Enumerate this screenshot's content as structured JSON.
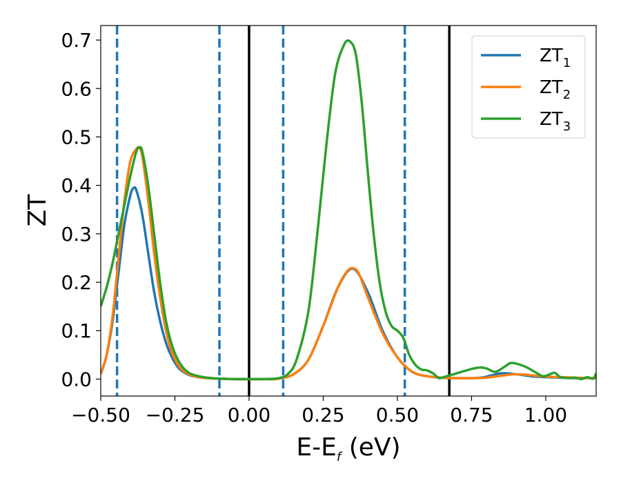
{
  "chart_data": {
    "type": "line",
    "xlabel_main": "E-E",
    "xlabel_sub": "f",
    "xlabel_unit": " (eV)",
    "ylabel": "ZT",
    "xlim": [
      -0.5,
      1.17
    ],
    "ylim": [
      -0.035,
      0.73
    ],
    "xticks": [
      -0.5,
      -0.25,
      0.0,
      0.25,
      0.5,
      0.75,
      1.0
    ],
    "xtick_labels": [
      "−0.50",
      "−0.25",
      "0.00",
      "0.25",
      "0.50",
      "0.75",
      "1.00"
    ],
    "yticks": [
      0.0,
      0.1,
      0.2,
      0.3,
      0.4,
      0.5,
      0.6,
      0.7
    ],
    "ytick_labels": [
      "0.0",
      "0.1",
      "0.2",
      "0.3",
      "0.4",
      "0.5",
      "0.6",
      "0.7"
    ],
    "vlines_dashed": [
      -0.445,
      -0.1,
      0.115,
      0.525
    ],
    "vlines_solid": [
      0.0,
      0.675
    ],
    "legend_position": "top-right",
    "series": [
      {
        "name": "ZT",
        "subscript": "1",
        "color": "#1f77b4",
        "x": [
          -0.5,
          -0.48,
          -0.46,
          -0.44,
          -0.42,
          -0.4,
          -0.39,
          -0.38,
          -0.36,
          -0.34,
          -0.32,
          -0.3,
          -0.28,
          -0.26,
          -0.24,
          -0.22,
          -0.2,
          -0.17,
          -0.14,
          -0.1,
          -0.05,
          0.0,
          0.05,
          0.1,
          0.15,
          0.2,
          0.25,
          0.3,
          0.35,
          0.4,
          0.45,
          0.5,
          0.55,
          0.6,
          0.65,
          0.675,
          0.7,
          0.75,
          0.78,
          0.8,
          0.85,
          0.9,
          0.95,
          1.0,
          1.05,
          1.1,
          1.15,
          1.17
        ],
        "y": [
          0.01,
          0.05,
          0.12,
          0.22,
          0.32,
          0.38,
          0.394,
          0.39,
          0.34,
          0.26,
          0.18,
          0.12,
          0.075,
          0.045,
          0.025,
          0.014,
          0.008,
          0.004,
          0.002,
          0.001,
          0.0,
          0.0,
          0.0,
          0.001,
          0.01,
          0.04,
          0.11,
          0.19,
          0.228,
          0.18,
          0.1,
          0.045,
          0.015,
          0.006,
          0.003,
          0.002,
          0.002,
          0.002,
          0.003,
          0.005,
          0.012,
          0.01,
          0.006,
          0.004,
          0.003,
          0.002,
          0.002,
          0.002
        ]
      },
      {
        "name": "ZT",
        "subscript": "2",
        "color": "#ff7f0e",
        "x": [
          -0.5,
          -0.48,
          -0.46,
          -0.44,
          -0.42,
          -0.4,
          -0.38,
          -0.37,
          -0.36,
          -0.34,
          -0.32,
          -0.3,
          -0.28,
          -0.26,
          -0.24,
          -0.22,
          -0.2,
          -0.17,
          -0.14,
          -0.1,
          -0.05,
          0.0,
          0.05,
          0.1,
          0.15,
          0.2,
          0.25,
          0.3,
          0.33,
          0.35,
          0.37,
          0.4,
          0.45,
          0.5,
          0.55,
          0.6,
          0.65,
          0.7,
          0.75,
          0.8,
          0.85,
          0.9,
          0.95,
          1.0,
          1.05,
          1.1,
          1.15,
          1.17
        ],
        "y": [
          0.01,
          0.05,
          0.13,
          0.25,
          0.37,
          0.45,
          0.475,
          0.477,
          0.46,
          0.37,
          0.26,
          0.17,
          0.1,
          0.055,
          0.03,
          0.016,
          0.009,
          0.004,
          0.002,
          0.001,
          0.0,
          0.0,
          0.0,
          0.001,
          0.01,
          0.04,
          0.11,
          0.19,
          0.222,
          0.229,
          0.218,
          0.17,
          0.095,
          0.045,
          0.015,
          0.006,
          0.003,
          0.002,
          0.002,
          0.003,
          0.007,
          0.01,
          0.008,
          0.005,
          0.004,
          0.003,
          0.002,
          0.002
        ]
      },
      {
        "name": "ZT",
        "subscript": "3",
        "color": "#2ca02c",
        "x": [
          -0.5,
          -0.48,
          -0.46,
          -0.44,
          -0.42,
          -0.4,
          -0.38,
          -0.37,
          -0.36,
          -0.34,
          -0.32,
          -0.3,
          -0.28,
          -0.26,
          -0.24,
          -0.22,
          -0.2,
          -0.17,
          -0.14,
          -0.1,
          -0.05,
          0.0,
          0.05,
          0.1,
          0.13,
          0.16,
          0.2,
          0.23,
          0.26,
          0.29,
          0.32,
          0.34,
          0.36,
          0.38,
          0.4,
          0.42,
          0.44,
          0.46,
          0.48,
          0.5,
          0.52,
          0.54,
          0.56,
          0.58,
          0.6,
          0.62,
          0.64,
          0.66,
          0.7,
          0.75,
          0.78,
          0.8,
          0.83,
          0.86,
          0.88,
          0.9,
          0.93,
          0.96,
          0.99,
          1.01,
          1.03,
          1.05,
          1.08,
          1.1,
          1.12,
          1.14,
          1.16,
          1.17
        ],
        "y": [
          0.15,
          0.19,
          0.24,
          0.3,
          0.36,
          0.42,
          0.47,
          0.478,
          0.47,
          0.4,
          0.3,
          0.2,
          0.12,
          0.07,
          0.04,
          0.022,
          0.012,
          0.006,
          0.003,
          0.001,
          0.0,
          0.0,
          0.0,
          0.002,
          0.01,
          0.04,
          0.14,
          0.3,
          0.48,
          0.63,
          0.69,
          0.697,
          0.67,
          0.57,
          0.43,
          0.3,
          0.2,
          0.14,
          0.11,
          0.1,
          0.085,
          0.05,
          0.03,
          0.02,
          0.018,
          0.012,
          0.002,
          0.005,
          0.012,
          0.021,
          0.024,
          0.022,
          0.015,
          0.025,
          0.033,
          0.032,
          0.026,
          0.016,
          0.006,
          0.009,
          0.013,
          0.004,
          0.002,
          0.003,
          0.0,
          0.004,
          0.001,
          0.012
        ]
      }
    ]
  }
}
